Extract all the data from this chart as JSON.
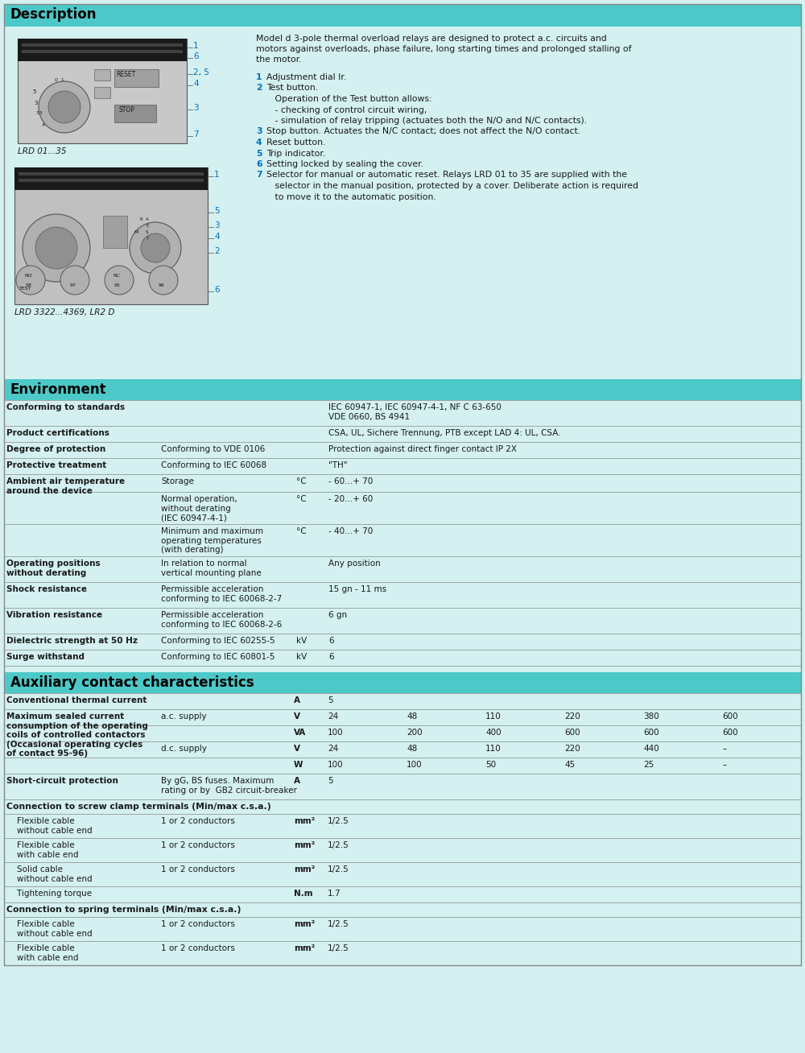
{
  "bg_color": "#d4f0f0",
  "header_color": "#4dc8c8",
  "blue_num": "#0070c0",
  "text_dark": "#1a1a1a",
  "section1_title": "Description",
  "section2_title": "Environment",
  "section3_title": "Auxiliary contact characteristics",
  "desc_text_line1": "Model d 3-pole thermal overload relays are designed to protect a.c. circuits and",
  "desc_text_line2": "motors against overloads, phase failure, long starting times and prolonged stalling of",
  "desc_text_line3": "the motor.",
  "numbered_items": [
    [
      "1",
      "Adjustment dial Ir."
    ],
    [
      "2",
      "Test button."
    ],
    [
      "",
      "   Operation of the Test button allows:"
    ],
    [
      "",
      "   - checking of control circuit wiring,"
    ],
    [
      "",
      "   - simulation of relay tripping (actuates both the N/O and N/C contacts)."
    ],
    [
      "3",
      "Stop button. Actuates the N/C contact; does not affect the N/O contact."
    ],
    [
      "4",
      "Reset button."
    ],
    [
      "5",
      "Trip indicator."
    ],
    [
      "6",
      "Setting locked by sealing the cover."
    ],
    [
      "7",
      "Selector for manual or automatic reset. Relays LRD 01 to 35 are supplied with the"
    ],
    [
      "",
      "   selector in the manual position, protected by a cover. Deliberate action is required"
    ],
    [
      "",
      "   to move it to the automatic position."
    ]
  ],
  "label1": "LRD 01...35",
  "label2": "LRD 3322...4369, LR2 D",
  "env_rows": [
    {
      "col1": "Conforming to standards",
      "col2": "",
      "col3": "",
      "col4": "IEC 60947-1, IEC 60947-4-1, NF C 63-650\nVDE 0660, BS 4941",
      "bold1": true,
      "rh": 32
    },
    {
      "col1": "Product certifications",
      "col2": "",
      "col3": "",
      "col4": "CSA, UL, Sichere Trennung, PTB except LAD 4: UL, CSA.",
      "bold1": true,
      "rh": 20
    },
    {
      "col1": "Degree of protection",
      "col2": "Conforming to VDE 0106",
      "col3": "",
      "col4": "Protection against direct finger contact IP 2X",
      "bold1": true,
      "rh": 20
    },
    {
      "col1": "Protective treatment",
      "col2": "Conforming to IEC 60068",
      "col3": "",
      "col4": "\"TH\"",
      "bold1": true,
      "rh": 20
    },
    {
      "col1": "Ambient air temperature\naround the device",
      "col2": "Storage",
      "col3": "°C",
      "col4": "- 60...+ 70",
      "bold1": true,
      "rh": 22
    },
    {
      "col1": "",
      "col2": "Normal operation,\nwithout derating\n(IEC 60947-4-1)",
      "col3": "°C",
      "col4": "- 20...+ 60",
      "bold1": false,
      "rh": 40
    },
    {
      "col1": "",
      "col2": "Minimum and maximum\noperating temperatures\n(with derating)",
      "col3": "°C",
      "col4": "- 40...+ 70",
      "bold1": false,
      "rh": 40
    },
    {
      "col1": "Operating positions\nwithout derating",
      "col2": "In relation to normal\nvertical mounting plane",
      "col3": "",
      "col4": "Any position",
      "bold1": true,
      "rh": 32
    },
    {
      "col1": "Shock resistance",
      "col2": "Permissible acceleration\nconforming to IEC 60068-2-7",
      "col3": "",
      "col4": "15 gn - 11 ms",
      "bold1": true,
      "rh": 32
    },
    {
      "col1": "Vibration resistance",
      "col2": "Permissible acceleration\nconforming to IEC 60068-2-6",
      "col3": "",
      "col4": "6 gn",
      "bold1": true,
      "rh": 32
    },
    {
      "col1": "Dielectric strength at 50 Hz",
      "col2": "Conforming to IEC 60255-5",
      "col3": "kV",
      "col4": "6",
      "bold1": true,
      "rh": 20
    },
    {
      "col1": "Surge withstand",
      "col2": "Conforming to IEC 60801-5",
      "col3": "kV",
      "col4": "6",
      "bold1": true,
      "rh": 20
    }
  ],
  "aux_rows": [
    {
      "type": "single",
      "col1": "Conventional thermal current",
      "col2": "",
      "col3": "A",
      "vals": [
        "5",
        "",
        "",
        "",
        "",
        ""
      ],
      "bold1": true,
      "rh": 20
    },
    {
      "type": "multi_ac_v",
      "col1": "Maximum sealed current\nconsumption of the operating\ncoils of controlled contactors\n(Occasional operating cycles\nof contact 95-96)",
      "col2": "a.c. supply",
      "col3": "V",
      "vals": [
        "24",
        "48",
        "110",
        "220",
        "380",
        "600"
      ],
      "bold1": true,
      "rh": 20
    },
    {
      "type": "multi_ac_va",
      "col1": "",
      "col2": "",
      "col3": "VA",
      "vals": [
        "100",
        "200",
        "400",
        "600",
        "600",
        "600"
      ],
      "bold1": false,
      "rh": 20
    },
    {
      "type": "multi_dc_v",
      "col1": "",
      "col2": "d.c. supply",
      "col3": "V",
      "vals": [
        "24",
        "48",
        "110",
        "220",
        "440",
        "–"
      ],
      "bold1": false,
      "rh": 20
    },
    {
      "type": "multi_dc_w",
      "col1": "",
      "col2": "",
      "col3": "W",
      "vals": [
        "100",
        "100",
        "50",
        "45",
        "25",
        "–"
      ],
      "bold1": false,
      "rh": 20
    },
    {
      "type": "single",
      "col1": "Short-circuit protection",
      "col2": "By gG, BS fuses. Maximum\nrating or by  GB2 circuit-breaker",
      "col3": "A",
      "vals": [
        "5",
        "",
        "",
        "",
        "",
        ""
      ],
      "bold1": true,
      "rh": 32
    },
    {
      "type": "section_header",
      "col1": "Connection to screw clamp terminals (Min/max c.s.a.)",
      "col2": "",
      "col3": "",
      "vals": [
        "",
        "",
        "",
        "",
        "",
        ""
      ],
      "bold1": false,
      "rh": 18
    },
    {
      "type": "cable",
      "col1": "    Flexible cable\n    without cable end",
      "col2": "1 or 2 conductors",
      "col3": "mm²",
      "vals": [
        "1/2.5",
        "",
        "",
        "",
        "",
        ""
      ],
      "bold1": false,
      "rh": 30
    },
    {
      "type": "cable",
      "col1": "    Flexible cable\n    with cable end",
      "col2": "1 or 2 conductors",
      "col3": "mm²",
      "vals": [
        "1/2.5",
        "",
        "",
        "",
        "",
        ""
      ],
      "bold1": false,
      "rh": 30
    },
    {
      "type": "cable",
      "col1": "    Solid cable\n    without cable end",
      "col2": "1 or 2 conductors",
      "col3": "mm²",
      "vals": [
        "1/2.5",
        "",
        "",
        "",
        "",
        ""
      ],
      "bold1": false,
      "rh": 30
    },
    {
      "type": "cable",
      "col1": "    Tightening torque",
      "col2": "",
      "col3": "N.m",
      "vals": [
        "1.7",
        "",
        "",
        "",
        "",
        ""
      ],
      "bold1": false,
      "rh": 20
    },
    {
      "type": "section_header",
      "col1": "Connection to spring terminals (Min/max c.s.a.)",
      "col2": "",
      "col3": "",
      "vals": [
        "",
        "",
        "",
        "",
        "",
        ""
      ],
      "bold1": false,
      "rh": 18
    },
    {
      "type": "cable",
      "col1": "    Flexible cable\n    without cable end",
      "col2": "1 or 2 conductors",
      "col3": "mm²",
      "vals": [
        "1/2.5",
        "",
        "",
        "",
        "",
        ""
      ],
      "bold1": false,
      "rh": 30
    },
    {
      "type": "cable",
      "col1": "    Flexible cable\n    with cable end",
      "col2": "1 or 2 conductors",
      "col3": "mm²",
      "vals": [
        "1/2.5",
        "",
        "",
        "",
        "",
        ""
      ],
      "bold1": false,
      "rh": 30
    }
  ]
}
